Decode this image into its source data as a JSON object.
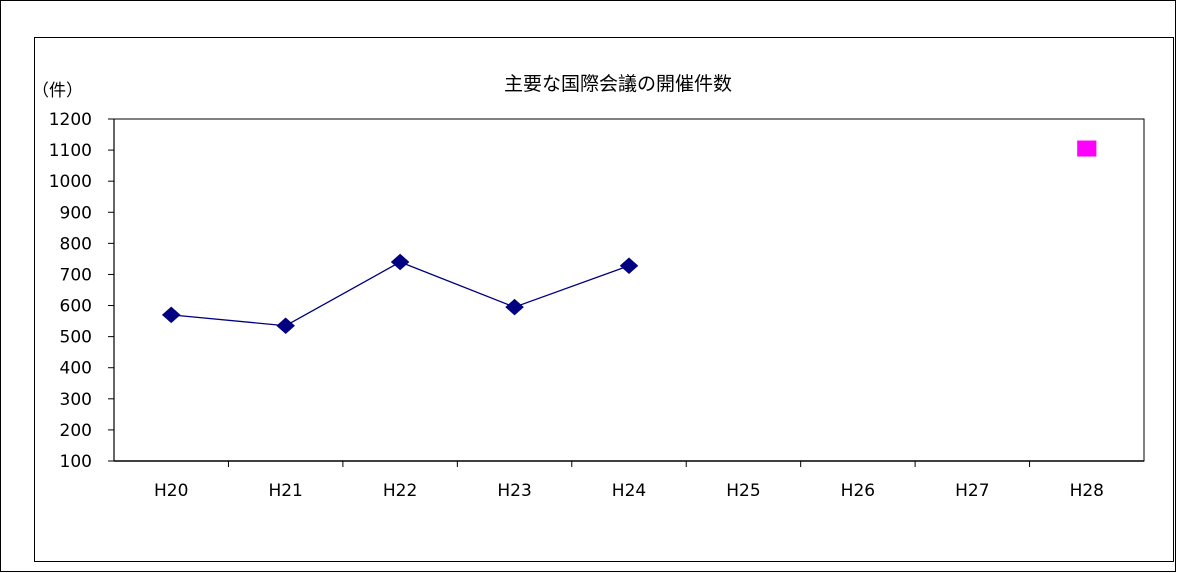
{
  "chart_data": {
    "type": "line",
    "title": "主要な国際会議の開催件数",
    "ylabel": "（件）",
    "xlabel": "",
    "categories": [
      "H20",
      "H21",
      "H22",
      "H23",
      "H24",
      "H25",
      "H26",
      "H27",
      "H28"
    ],
    "ylim": [
      100,
      1200
    ],
    "yticks": [
      100,
      200,
      300,
      400,
      500,
      600,
      700,
      800,
      900,
      1000,
      1100,
      1200
    ],
    "grid": false,
    "series": [
      {
        "values": [
          570,
          535,
          740,
          595,
          728,
          null,
          null,
          null,
          null
        ],
        "color": "#000080",
        "marker": "diamond",
        "line": true
      },
      {
        "values": [
          null,
          null,
          null,
          null,
          null,
          null,
          null,
          null,
          1105
        ],
        "color": "#FF00FF",
        "marker": "square",
        "line": false
      }
    ]
  }
}
